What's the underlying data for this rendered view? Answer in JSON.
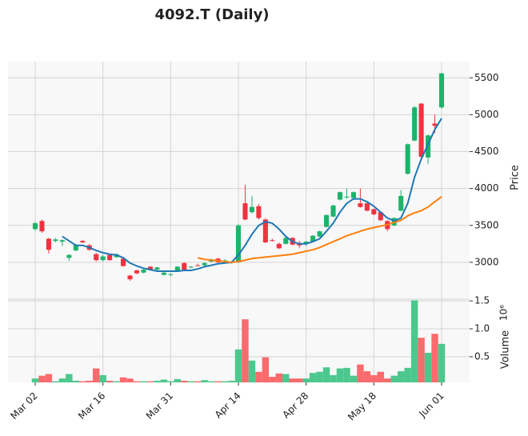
{
  "chart_data": {
    "type": "candlestick",
    "title": "4092.T (Daily)",
    "ylabel": "Price",
    "volume_ylabel": "Volume",
    "volume_offset": "10⁶",
    "categories": [
      "Mar 02",
      null,
      null,
      null,
      null,
      null,
      null,
      null,
      null,
      null,
      "Mar 16",
      null,
      null,
      null,
      null,
      null,
      null,
      null,
      null,
      null,
      "Mar 31",
      null,
      null,
      null,
      null,
      null,
      null,
      null,
      null,
      null,
      "Apr 14",
      null,
      null,
      null,
      null,
      null,
      null,
      null,
      null,
      null,
      "Apr 28",
      null,
      null,
      null,
      null,
      null,
      null,
      null,
      null,
      null,
      "May 18",
      null,
      null,
      null,
      null,
      null,
      null,
      null,
      null,
      null,
      "Jun 01"
    ],
    "open": [
      3450,
      3560,
      3320,
      3290,
      3280,
      3060,
      3160,
      3290,
      3230,
      3110,
      3030,
      3100,
      3070,
      3050,
      2820,
      2890,
      2860,
      2940,
      2900,
      2830,
      2830,
      2890,
      2990,
      2930,
      2960,
      2960,
      3010,
      3050,
      3020,
      3000,
      3000,
      3800,
      3680,
      3760,
      3580,
      3300,
      3250,
      3250,
      3330,
      3260,
      3250,
      3280,
      3350,
      3480,
      3620,
      3850,
      3880,
      3870,
      3800,
      3800,
      3720,
      3680,
      3560,
      3500,
      3700,
      4200,
      4650,
      5150,
      4420,
      4880,
      5100
    ],
    "high": [
      3550,
      3580,
      3330,
      3330,
      3310,
      3110,
      3250,
      3300,
      3250,
      3130,
      3100,
      3110,
      3120,
      3060,
      2830,
      2900,
      2910,
      2950,
      2940,
      2870,
      2850,
      2950,
      3000,
      2950,
      2980,
      3000,
      3050,
      3060,
      3040,
      3020,
      3520,
      4050,
      3900,
      3790,
      3600,
      3320,
      3270,
      3340,
      3340,
      3290,
      3290,
      3370,
      3430,
      3650,
      3780,
      3960,
      4000,
      3960,
      4000,
      3810,
      3730,
      3690,
      3570,
      3610,
      3980,
      4610,
      5120,
      5160,
      4730,
      5000,
      5570
    ],
    "low": [
      3430,
      3400,
      3120,
      3270,
      3220,
      3020,
      3150,
      3260,
      3160,
      3010,
      3010,
      3020,
      3060,
      2940,
      2750,
      2840,
      2850,
      2890,
      2890,
      2820,
      2810,
      2880,
      2890,
      2920,
      2950,
      2950,
      3000,
      2990,
      3010,
      2980,
      2990,
      3570,
      3660,
      3580,
      3260,
      3280,
      3180,
      3240,
      3230,
      3190,
      3220,
      3270,
      3340,
      3470,
      3610,
      3840,
      3860,
      3860,
      3740,
      3690,
      3640,
      3560,
      3420,
      3490,
      3690,
      4190,
      4640,
      4420,
      4330,
      4750,
      5080
    ],
    "close": [
      3530,
      3420,
      3170,
      3310,
      3300,
      3100,
      3230,
      3270,
      3170,
      3030,
      3080,
      3030,
      3110,
      2950,
      2770,
      2850,
      2900,
      2900,
      2930,
      2860,
      2840,
      2940,
      2900,
      2940,
      2955,
      2990,
      3040,
      3000,
      3025,
      3005,
      3500,
      3580,
      3750,
      3600,
      3270,
      3295,
      3190,
      3330,
      3240,
      3230,
      3280,
      3360,
      3420,
      3640,
      3770,
      3950,
      3890,
      3950,
      3750,
      3700,
      3650,
      3570,
      3450,
      3600,
      3900,
      4600,
      5100,
      4430,
      4720,
      4850,
      5560
    ],
    "volume": [
      0.11,
      0.16,
      0.19,
      0.06,
      0.11,
      0.19,
      0.07,
      0.06,
      0.07,
      0.29,
      0.17,
      0.07,
      0.06,
      0.13,
      0.11,
      0.06,
      0.06,
      0.06,
      0.07,
      0.09,
      0.06,
      0.1,
      0.07,
      0.06,
      0.06,
      0.08,
      0.06,
      0.06,
      0.06,
      0.07,
      0.63,
      1.17,
      0.43,
      0.23,
      0.49,
      0.14,
      0.2,
      0.19,
      0.11,
      0.11,
      0.11,
      0.21,
      0.23,
      0.31,
      0.17,
      0.29,
      0.3,
      0.16,
      0.36,
      0.24,
      0.17,
      0.23,
      0.11,
      0.16,
      0.24,
      0.3,
      1.51,
      0.84,
      0.57,
      0.91,
      0.73
    ],
    "mav": [
      {
        "color": "#1f77b4",
        "values": [
          null,
          null,
          null,
          null,
          3350,
          3290,
          3230,
          3230,
          3200,
          3160,
          3130,
          3110,
          3100,
          3060,
          2990,
          2950,
          2920,
          2900,
          2880,
          2880,
          2880,
          2880,
          2890,
          2890,
          2910,
          2940,
          2960,
          2980,
          2990,
          3000,
          3100,
          3230,
          3380,
          3500,
          3550,
          3530,
          3450,
          3350,
          3280,
          3250,
          3250,
          3280,
          3320,
          3420,
          3530,
          3680,
          3800,
          3860,
          3860,
          3820,
          3760,
          3680,
          3600,
          3560,
          3600,
          3800,
          4150,
          4400,
          4600,
          4800,
          4950
        ]
      },
      {
        "color": "#ff7f0e",
        "values": [
          null,
          null,
          null,
          null,
          null,
          null,
          null,
          null,
          null,
          null,
          null,
          null,
          null,
          null,
          null,
          null,
          null,
          null,
          null,
          null,
          null,
          null,
          null,
          null,
          3060,
          3040,
          3030,
          3020,
          3010,
          3000,
          3010,
          3030,
          3050,
          3060,
          3070,
          3080,
          3090,
          3100,
          3110,
          3130,
          3150,
          3170,
          3200,
          3240,
          3280,
          3320,
          3360,
          3390,
          3420,
          3450,
          3470,
          3490,
          3510,
          3540,
          3570,
          3630,
          3670,
          3700,
          3750,
          3820,
          3890
        ]
      }
    ],
    "up_color": "#1db36a",
    "down_color": "#ef3340",
    "up_volume_color": "#4cc88e",
    "down_volume_color": "#fb6b6e",
    "ylim": [
      2500,
      5720
    ],
    "yticks": [
      3000,
      3500,
      4000,
      4500,
      5000,
      5500
    ],
    "volume_ylim": [
      0.04,
      1.53
    ],
    "volume_yticks": [
      0.5,
      {
        "value": 1,
        "label": "1.0"
      },
      1.5
    ],
    "grid": true
  }
}
